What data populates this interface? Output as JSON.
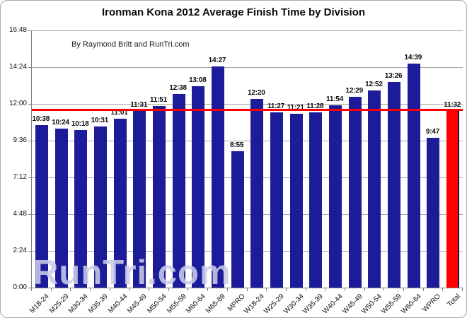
{
  "title": "Ironman Kona 2012 Average Finish Time by Division",
  "credit": "By Raymond Britt and RunTri.com",
  "watermark": "RunTri.com",
  "colors": {
    "bar": "#1c1c9a",
    "highlight_bar": "#fe0000",
    "average_line": "#fe0000",
    "gridline": "#a8a8a8",
    "axis": "#808080"
  },
  "chart_data": {
    "type": "bar",
    "title": "Ironman Kona 2012 Average Finish Time by Division",
    "xlabel": "",
    "ylabel": "",
    "grid": true,
    "legend": false,
    "categories": [
      "M18-24",
      "M25-29",
      "M30-34",
      "M35-39",
      "M40-44",
      "M45-49",
      "M50-54",
      "M55-59",
      "M60-64",
      "M65-69",
      "MPRO",
      "W18-24",
      "W25-29",
      "W30-34",
      "W35-39",
      "W40-44",
      "W45-49",
      "W50-54",
      "W55-59",
      "W60-64",
      "WPRO",
      "Total"
    ],
    "values": [
      "10:38",
      "10:24",
      "10:18",
      "10:31",
      "11:01",
      "11:31",
      "11:51",
      "12:38",
      "13:08",
      "14:27",
      "8:55",
      "12:20",
      "11:27",
      "11:21",
      "11:28",
      "11:54",
      "12:29",
      "12:52",
      "13:26",
      "14:39",
      "9:47",
      "11:32"
    ],
    "highlight_category": "Total",
    "average_line": "11:32",
    "y_ticks": [
      "16:48",
      "14:24",
      "12:00",
      "9:36",
      "7:12",
      "4:48",
      "2:24",
      "0:00"
    ],
    "ylim": [
      "0:00",
      "16:48"
    ],
    "bar_color": "#1c1c9a",
    "highlight_color": "#fe0000",
    "line_color": "#fe0000"
  }
}
